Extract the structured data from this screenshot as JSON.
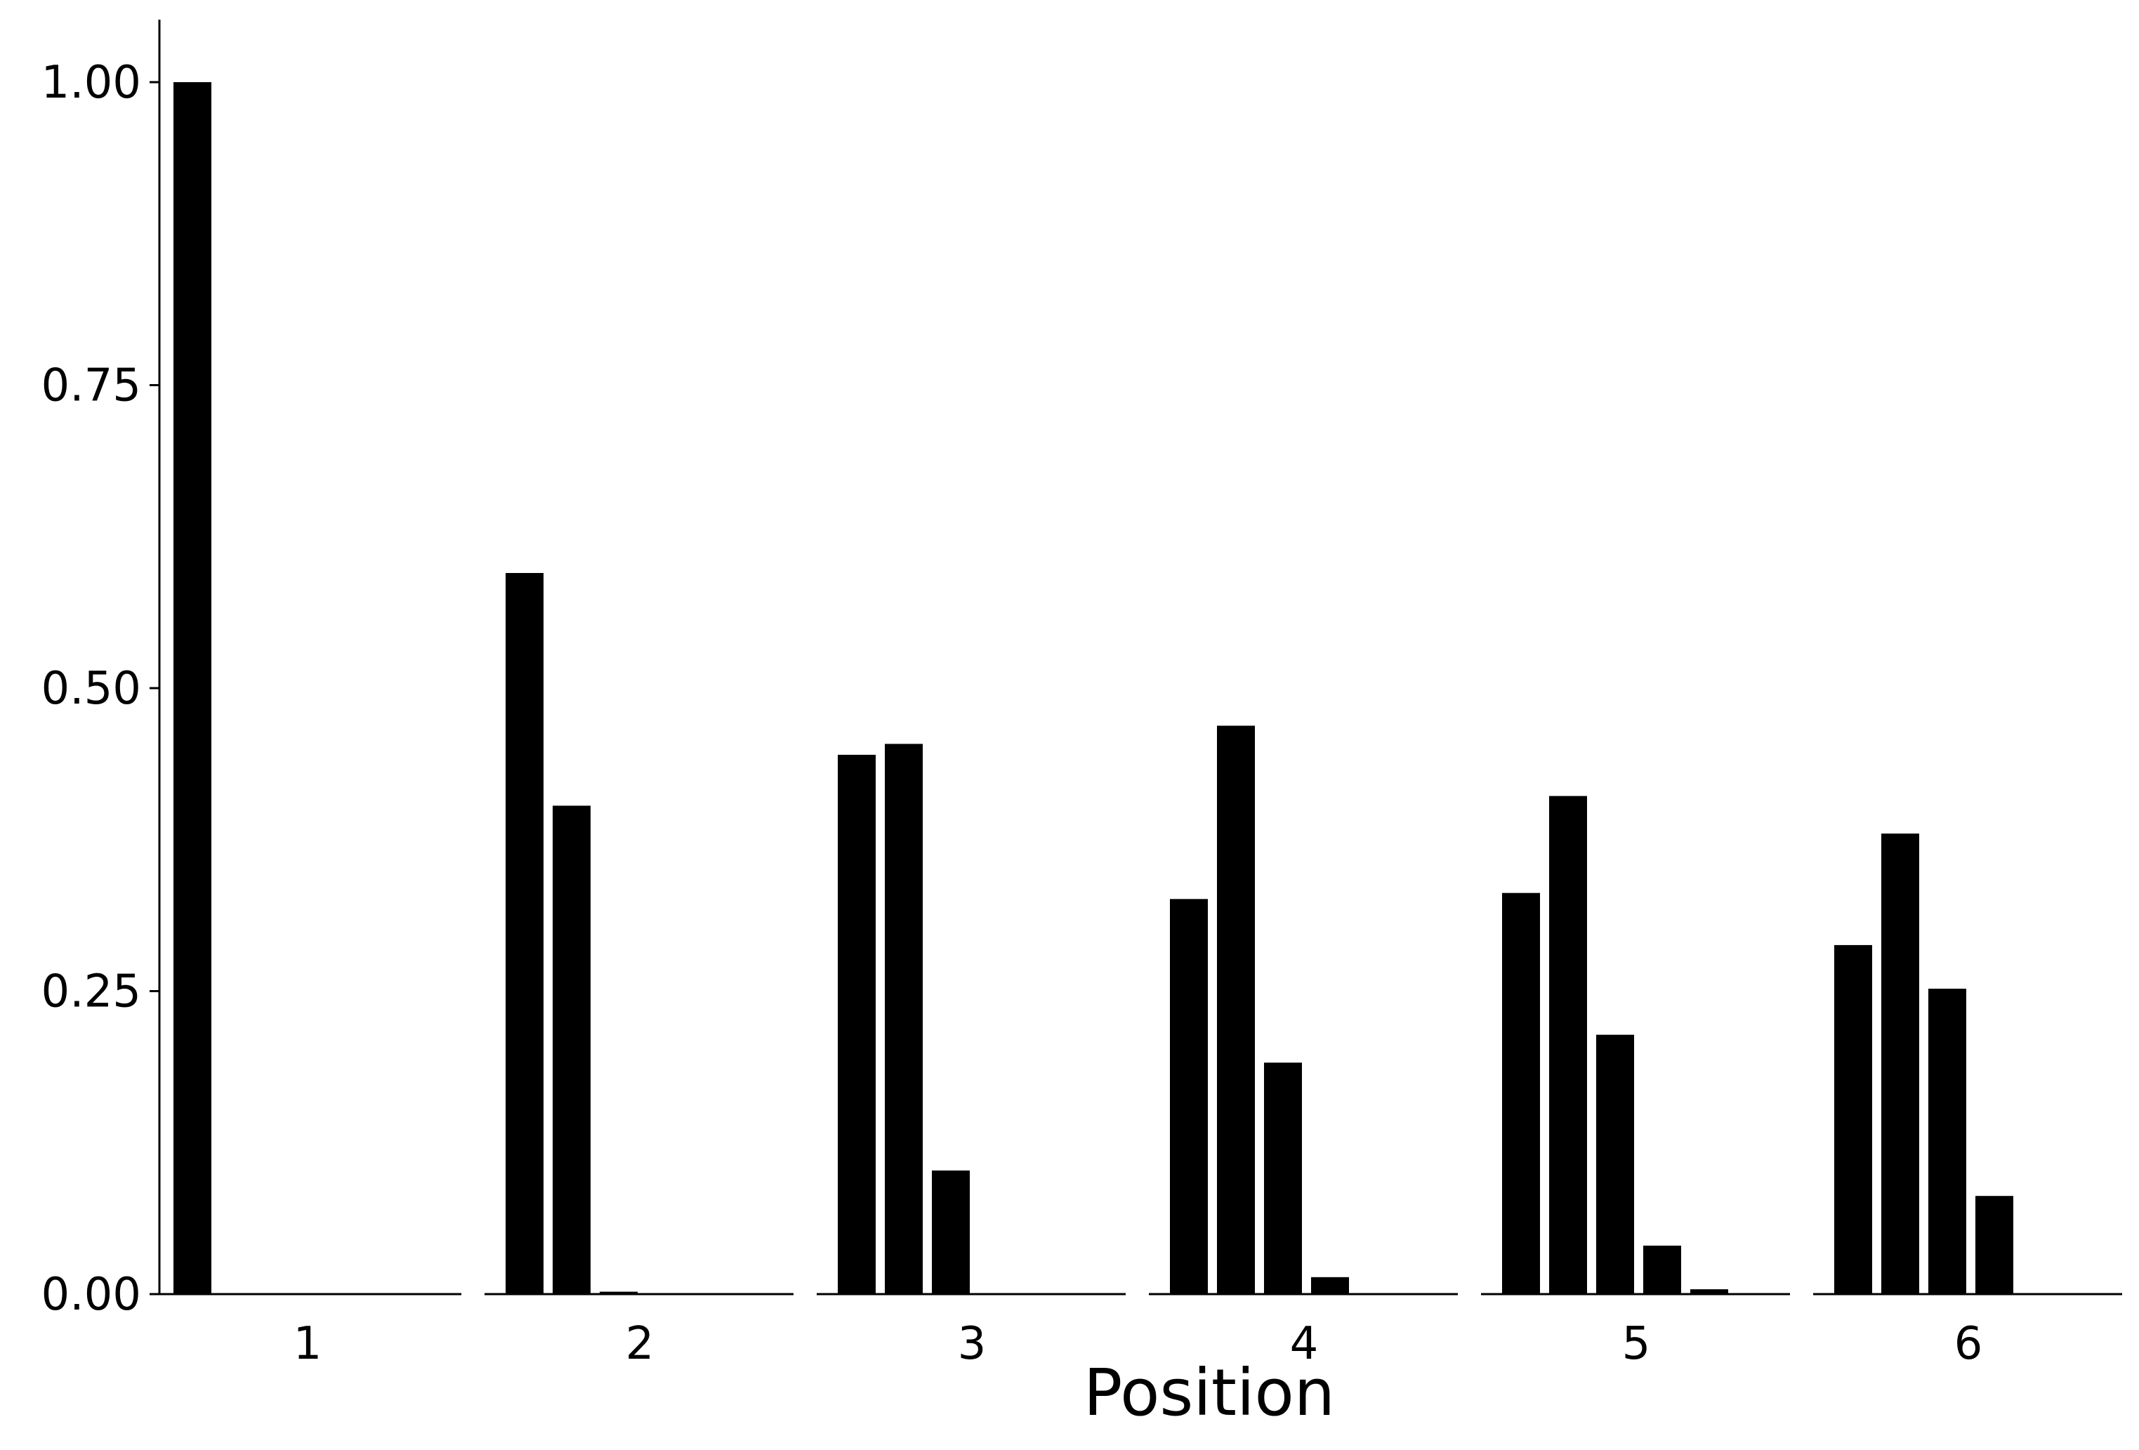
{
  "chart_data": {
    "type": "bar",
    "xlabel": "Position",
    "ylabel": "",
    "ylim": [
      0,
      1.05
    ],
    "yticks": [
      0.0,
      0.25,
      0.5,
      0.75,
      1.0
    ],
    "ytick_labels": [
      "0.00",
      "0.25",
      "0.50",
      "0.75",
      "1.00"
    ],
    "bar_color": "#000000",
    "grid": false,
    "legend": "none",
    "groups": [
      {
        "label": "1",
        "values": [
          1.0,
          0.0,
          0.0,
          0.0,
          0.0,
          0.0
        ]
      },
      {
        "label": "2",
        "values": [
          0.595,
          0.403,
          0.002,
          0.0,
          0.0,
          0.0
        ]
      },
      {
        "label": "3",
        "values": [
          0.445,
          0.454,
          0.102,
          0.0,
          0.0,
          0.0
        ]
      },
      {
        "label": "4",
        "values": [
          0.326,
          0.469,
          0.191,
          0.014,
          0.0,
          0.0
        ]
      },
      {
        "label": "5",
        "values": [
          0.331,
          0.411,
          0.214,
          0.04,
          0.004,
          0.0
        ]
      },
      {
        "label": "6",
        "values": [
          0.288,
          0.38,
          0.252,
          0.081,
          0.0,
          0.0
        ]
      }
    ]
  }
}
